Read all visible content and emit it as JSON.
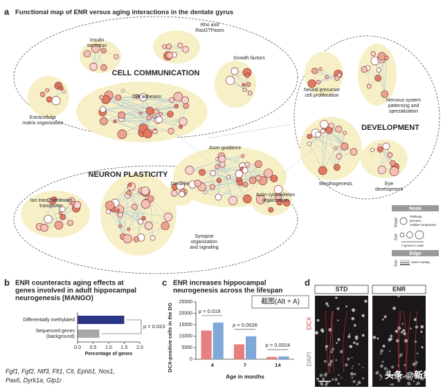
{
  "panel_a": {
    "letter": "a",
    "title": "Functional map of ENR versus aging interactions in the dentate gyrus",
    "groups": [
      "CELL COMMUNICATION",
      "DEVELOPMENT",
      "NEURON PLASTICITY"
    ],
    "clusters": [
      {
        "label": [
          "Insulin",
          "secretion"
        ]
      },
      {
        "label": [
          "Rho and",
          "RasGTPases"
        ]
      },
      {
        "label": [
          "Growth factors"
        ]
      },
      {
        "label": [
          "Cell adhesion"
        ]
      },
      {
        "label": [
          "Extracellular",
          "matrix organization"
        ]
      },
      {
        "label": [
          "Neural precursor",
          "cell proliferation"
        ]
      },
      {
        "label": [
          "Nervous system",
          "patterning and",
          "specialization"
        ]
      },
      {
        "label": [
          "Morphogenesis"
        ]
      },
      {
        "label": [
          "Eye",
          "development"
        ]
      },
      {
        "label": [
          "Axon guidance"
        ]
      },
      {
        "label": [
          "Dendrite"
        ]
      },
      {
        "label": [
          "Actin cytoskeleton",
          "organization"
        ]
      },
      {
        "label": [
          "Ion transmembrane",
          "transporter"
        ]
      },
      {
        "label": [
          "Synapse",
          "organization",
          "and signaling"
        ]
      }
    ],
    "legend": {
      "node": "Node",
      "shape": "Shape",
      "shape_desc": [
        "Pathway,",
        "process,",
        "cellular component"
      ],
      "size": "Size",
      "size_desc": "# genes in node",
      "edge": "Edge",
      "edge_size": "Size",
      "edge_desc": "Gene overlap"
    }
  },
  "chart_data": [
    {
      "type": "bar",
      "orientation": "horizontal",
      "title": [
        "ENR counteracts aging effects at",
        "genes involved in adult hippocampal",
        "neurogenesis (MANGO)"
      ],
      "categories": [
        "Differentially methylated",
        [
          "Sequenced genes",
          "(background)"
        ]
      ],
      "values": [
        1.5,
        0.7
      ],
      "colors": [
        "#2b3585",
        "#a9a9a9"
      ],
      "xlim": [
        0,
        2
      ],
      "xticks": [
        {
          "value": 0,
          "label": "0.0"
        },
        0.5,
        {
          "value": 1,
          "label": "1.0"
        },
        1.5,
        {
          "value": 2,
          "label": "2.0"
        }
      ],
      "xlabel": "Percentage of genes",
      "annotation": "p = 0.023"
    },
    {
      "type": "grouped_bar",
      "title": [
        "ENR increases hippocampal",
        "neurogenesis across the lifespan"
      ],
      "categories": [
        "4",
        "7",
        "14"
      ],
      "series": [
        {
          "color": "#e77f7f",
          "values": [
            12500,
            6500,
            1000
          ]
        },
        {
          "color": "#7fa8d8",
          "values": [
            16000,
            10000,
            1200
          ]
        }
      ],
      "ylim": [
        0,
        25000
      ],
      "yticks": [
        0,
        5000,
        10000,
        15000,
        20000,
        25000
      ],
      "ylabel": "DCX-positive cells in the DG",
      "xlabel": "Age in months",
      "annotations": [
        "p = 0.019",
        "p = 0.0026",
        "p = 0.0024"
      ]
    }
  ],
  "panel_b": {
    "letter": "b",
    "genes": [
      "Fgf1, Fgf2, Ntf3, Flt1, Cit, Ephb1, Nos1,",
      "Pax6, Dyrk1a, Glp1r"
    ]
  },
  "panel_c": {
    "letter": "c"
  },
  "panel_d": {
    "letter": "d",
    "conditions": [
      "STD",
      "ENR"
    ],
    "stains": [
      "DCX",
      "DAPI"
    ]
  },
  "overlay": {
    "tooltip": "截图(Alt + A)",
    "watermark": "头条 @新氧"
  }
}
